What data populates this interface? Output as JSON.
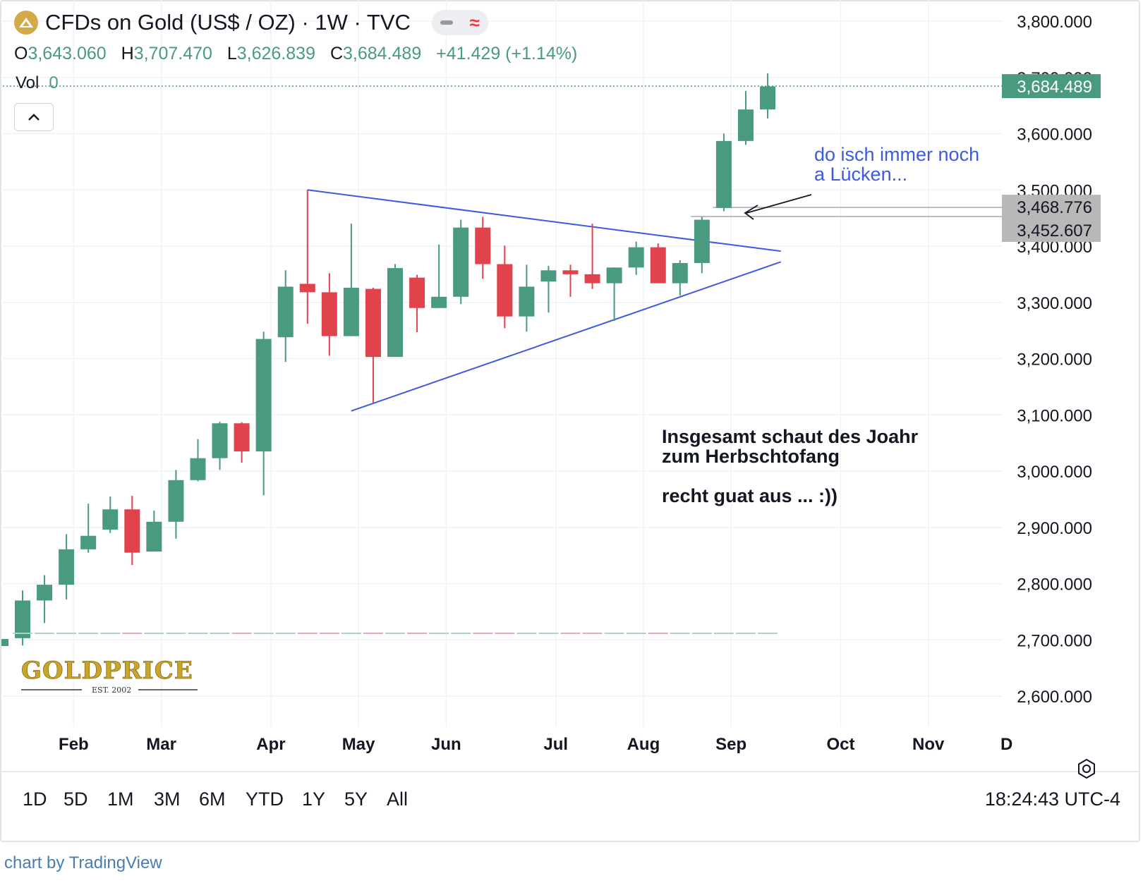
{
  "header": {
    "title": "CFDs on Gold (US$ / OZ) · 1W · TVC",
    "ohlc": {
      "o_label": "O",
      "o": "3,643.060",
      "h_label": "H",
      "h": "3,707.470",
      "l_label": "L",
      "l": "3,626.839",
      "c_label": "C",
      "c": "3,684.489",
      "change": "+41.429 (+1.14%)"
    },
    "vol_label": "Vol",
    "vol_value": "0"
  },
  "colors": {
    "up": "#4a9a80",
    "down": "#e0434c",
    "drawing_blue": "#3d5be0",
    "grid": "#f0f2f5"
  },
  "chart_data": {
    "type": "candlestick",
    "y_axis": {
      "min": 2550,
      "max": 3840,
      "ticks": [
        "2,600.000",
        "2,700.000",
        "2,800.000",
        "2,900.000",
        "3,000.000",
        "3,100.000",
        "3,200.000",
        "3,300.000",
        "3,400.000",
        "3,500.000",
        "3,600.000",
        "3,700.000",
        "3,800.000"
      ],
      "tick_values": [
        2600,
        2700,
        2800,
        2900,
        3000,
        3100,
        3200,
        3300,
        3400,
        3500,
        3600,
        3700,
        3800
      ]
    },
    "x_axis": {
      "months": [
        {
          "label": "Feb",
          "week": 2.33
        },
        {
          "label": "Mar",
          "week": 6.33
        },
        {
          "label": "Apr",
          "week": 11.33
        },
        {
          "label": "May",
          "week": 15.33
        },
        {
          "label": "Jun",
          "week": 19.33
        },
        {
          "label": "Jul",
          "week": 24.33
        },
        {
          "label": "Aug",
          "week": 28.33
        },
        {
          "label": "Sep",
          "week": 32.33
        },
        {
          "label": "Oct",
          "week": 37.33
        },
        {
          "label": "Nov",
          "week": 41.33
        },
        {
          "label": "D",
          "week": 44.9
        }
      ],
      "week_range": [
        -0.9,
        45.0
      ]
    },
    "candles": [
      {
        "o": 2703,
        "h": 2788,
        "l": 2690,
        "c": 2770
      },
      {
        "o": 2770,
        "h": 2815,
        "l": 2730,
        "c": 2798
      },
      {
        "o": 2798,
        "h": 2888,
        "l": 2772,
        "c": 2861
      },
      {
        "o": 2861,
        "h": 2942,
        "l": 2855,
        "c": 2885
      },
      {
        "o": 2896,
        "h": 2955,
        "l": 2890,
        "c": 2932
      },
      {
        "o": 2932,
        "h": 2956,
        "l": 2833,
        "c": 2855
      },
      {
        "o": 2857,
        "h": 2930,
        "l": 2857,
        "c": 2910
      },
      {
        "o": 2910,
        "h": 3002,
        "l": 2880,
        "c": 2984
      },
      {
        "o": 2984,
        "h": 3057,
        "l": 2982,
        "c": 3023
      },
      {
        "o": 3023,
        "h": 3088,
        "l": 3002,
        "c": 3085
      },
      {
        "o": 3085,
        "h": 3087,
        "l": 3015,
        "c": 3035
      },
      {
        "o": 3035,
        "h": 3248,
        "l": 2957,
        "c": 3235
      },
      {
        "o": 3238,
        "h": 3357,
        "l": 3194,
        "c": 3328
      },
      {
        "o": 3333,
        "h": 3500,
        "l": 3262,
        "c": 3318
      },
      {
        "o": 3318,
        "h": 3352,
        "l": 3205,
        "c": 3240
      },
      {
        "o": 3240,
        "h": 3440,
        "l": 3240,
        "c": 3326
      },
      {
        "o": 3324,
        "h": 3326,
        "l": 3121,
        "c": 3203
      },
      {
        "o": 3203,
        "h": 3368,
        "l": 3203,
        "c": 3361
      },
      {
        "o": 3344,
        "h": 3349,
        "l": 3247,
        "c": 3290
      },
      {
        "o": 3290,
        "h": 3403,
        "l": 3290,
        "c": 3310
      },
      {
        "o": 3310,
        "h": 3447,
        "l": 3297,
        "c": 3433
      },
      {
        "o": 3433,
        "h": 3452,
        "l": 3342,
        "c": 3368
      },
      {
        "o": 3368,
        "h": 3401,
        "l": 3254,
        "c": 3275
      },
      {
        "o": 3275,
        "h": 3367,
        "l": 3248,
        "c": 3328
      },
      {
        "o": 3337,
        "h": 3365,
        "l": 3282,
        "c": 3357
      },
      {
        "o": 3357,
        "h": 3367,
        "l": 3310,
        "c": 3350
      },
      {
        "o": 3350,
        "h": 3440,
        "l": 3324,
        "c": 3334
      },
      {
        "o": 3334,
        "h": 3362,
        "l": 3267,
        "c": 3362
      },
      {
        "o": 3362,
        "h": 3408,
        "l": 3349,
        "c": 3398
      },
      {
        "o": 3398,
        "h": 3405,
        "l": 3334,
        "c": 3334
      },
      {
        "o": 3334,
        "h": 3375,
        "l": 3312,
        "c": 3370
      },
      {
        "o": 3370,
        "h": 3452,
        "l": 3352,
        "c": 3447
      },
      {
        "o": 3468,
        "h": 3600,
        "l": 3462,
        "c": 3587
      },
      {
        "o": 3587,
        "h": 3676,
        "l": 3580,
        "c": 3643
      },
      {
        "o": 3643,
        "h": 3707,
        "l": 3627,
        "c": 3684
      }
    ],
    "last_price_label": "3,684.489",
    "last_price": 3684.489,
    "levels": [
      {
        "label": "3,468.776",
        "value": 3468.776
      },
      {
        "label": "3,452.607",
        "value": 3452.607
      }
    ],
    "triangle": {
      "upper": [
        {
          "week": 13.0,
          "price": 3500
        },
        {
          "week": 34.6,
          "price": 3391
        }
      ],
      "lower": [
        {
          "week": 15.0,
          "price": 3107
        },
        {
          "week": 34.6,
          "price": 3372
        }
      ]
    },
    "annotations": [
      {
        "line1": "do isch immer noch",
        "line2": "a Lücken...",
        "style": "blue"
      },
      {
        "line1": "Insgesamt schaut des Joahr",
        "line2": "zum Herbschtofang",
        "line3": "recht guat aus ... :))",
        "style": "bold"
      }
    ]
  },
  "logo": {
    "text": "GOLDPRICE",
    "est": "EST. 2002"
  },
  "range_bar": {
    "buttons": [
      "1D",
      "5D",
      "1M",
      "3M",
      "6M",
      "YTD",
      "1Y",
      "5Y",
      "All"
    ],
    "clock": "18:24:43 UTC-4"
  },
  "footer": "chart by TradingView"
}
